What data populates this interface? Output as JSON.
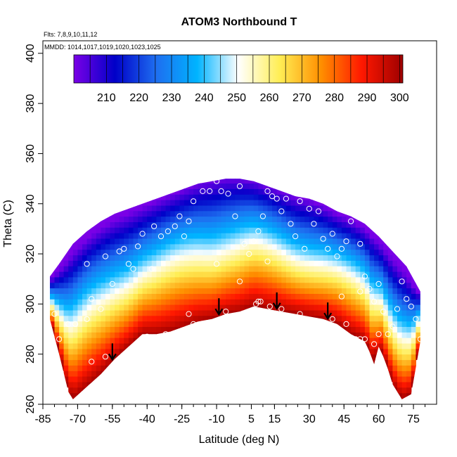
{
  "chart_data": {
    "type": "heatmap",
    "title": "ATOM3 Northbound T",
    "annotations": {
      "flights": "Flts: 7,8,9,10,11,12",
      "mmdd": "MMDD: 1014,1017,1019,1020,1023,1025"
    },
    "xlabel": "Latitude (deg N)",
    "ylabel": "Theta (C)",
    "xlim": [
      -85,
      85
    ],
    "ylim": [
      260,
      405
    ],
    "x_ticks": [
      -85,
      -70,
      -55,
      -40,
      -25,
      -10,
      5,
      15,
      30,
      45,
      60,
      75
    ],
    "x_tick_labels": [
      "-85",
      "-70",
      "-55",
      "-40",
      "-25",
      "-10",
      "5",
      "15",
      "30",
      "45",
      "60",
      "75"
    ],
    "y_ticks": [
      260,
      280,
      300,
      320,
      340,
      360,
      380,
      400
    ],
    "y_tick_labels": [
      "260",
      "280",
      "300",
      "320",
      "340",
      "360",
      "380",
      "400"
    ],
    "colorbar": {
      "min": 200,
      "max": 301,
      "ticks": [
        210,
        220,
        230,
        240,
        250,
        260,
        270,
        280,
        290,
        300
      ],
      "tick_labels": [
        "210",
        "220",
        "230",
        "240",
        "250",
        "260",
        "270",
        "280",
        "290",
        "300"
      ],
      "colors": [
        "#7a00e6",
        "#0000c8",
        "#1e6ef0",
        "#00b4ff",
        "#ffffff",
        "#ffee55",
        "#ff9000",
        "#ff1800",
        "#9e0000"
      ]
    },
    "field": {
      "lat_range": [
        -82,
        78
      ],
      "upper_theta": [
        [
          -82,
          311
        ],
        [
          -78,
          316
        ],
        [
          -72,
          324
        ],
        [
          -66,
          329
        ],
        [
          -60,
          333
        ],
        [
          -54,
          336
        ],
        [
          -48,
          338
        ],
        [
          -42,
          340
        ],
        [
          -36,
          342
        ],
        [
          -30,
          344
        ],
        [
          -24,
          346
        ],
        [
          -18,
          348
        ],
        [
          -12,
          349
        ],
        [
          -6,
          350
        ],
        [
          0,
          350
        ],
        [
          6,
          349
        ],
        [
          12,
          347
        ],
        [
          18,
          345
        ],
        [
          24,
          343
        ],
        [
          30,
          342
        ],
        [
          36,
          340
        ],
        [
          42,
          337
        ],
        [
          48,
          335
        ],
        [
          54,
          332
        ],
        [
          60,
          327
        ],
        [
          66,
          321
        ],
        [
          72,
          315
        ],
        [
          78,
          305
        ]
      ],
      "lower_theta": [
        [
          -82,
          294
        ],
        [
          -78,
          280
        ],
        [
          -74,
          265
        ],
        [
          -72,
          262
        ],
        [
          -66,
          267
        ],
        [
          -60,
          272
        ],
        [
          -54,
          278
        ],
        [
          -48,
          283
        ],
        [
          -42,
          288
        ],
        [
          -36,
          288
        ],
        [
          -30,
          289
        ],
        [
          -24,
          291
        ],
        [
          -18,
          293
        ],
        [
          -12,
          294
        ],
        [
          -6,
          296
        ],
        [
          0,
          297
        ],
        [
          6,
          299
        ],
        [
          12,
          298
        ],
        [
          18,
          297
        ],
        [
          24,
          296
        ],
        [
          30,
          295
        ],
        [
          36,
          294
        ],
        [
          42,
          292
        ],
        [
          48,
          288
        ],
        [
          52,
          286
        ],
        [
          54,
          285
        ],
        [
          56,
          281
        ],
        [
          58,
          276
        ],
        [
          60,
          283
        ],
        [
          62,
          279
        ],
        [
          64,
          274
        ],
        [
          66,
          268
        ],
        [
          70,
          262
        ],
        [
          74,
          264
        ],
        [
          78,
          285
        ]
      ]
    },
    "arrows": [
      -55,
      -9,
      16,
      38
    ],
    "points": [
      [
        -80,
        296
      ],
      [
        -78,
        286
      ],
      [
        -74,
        292
      ],
      [
        -71,
        292
      ],
      [
        -66,
        294
      ],
      [
        -64,
        302
      ],
      [
        -60,
        298
      ],
      [
        -55,
        308
      ],
      [
        -52,
        321
      ],
      [
        -50,
        322
      ],
      [
        -48,
        316
      ],
      [
        -44,
        323
      ],
      [
        -42,
        328
      ],
      [
        -37,
        331
      ],
      [
        -34,
        327
      ],
      [
        -31,
        329
      ],
      [
        -28,
        331
      ],
      [
        -26,
        335
      ],
      [
        -24,
        327
      ],
      [
        -22,
        333
      ],
      [
        -20,
        341
      ],
      [
        -16,
        345
      ],
      [
        -13,
        345
      ],
      [
        -10,
        349
      ],
      [
        -8,
        345
      ],
      [
        -5,
        344
      ],
      [
        -2,
        335
      ],
      [
        0,
        347
      ],
      [
        2,
        324
      ],
      [
        4,
        320
      ],
      [
        6,
        325
      ],
      [
        8,
        329
      ],
      [
        10,
        335
      ],
      [
        12,
        345
      ],
      [
        14,
        343
      ],
      [
        16,
        342
      ],
      [
        18,
        337
      ],
      [
        20,
        342
      ],
      [
        22,
        332
      ],
      [
        24,
        327
      ],
      [
        26,
        341
      ],
      [
        30,
        338
      ],
      [
        32,
        332
      ],
      [
        34,
        337
      ],
      [
        36,
        326
      ],
      [
        38,
        322
      ],
      [
        40,
        328
      ],
      [
        42,
        319
      ],
      [
        44,
        322
      ],
      [
        46,
        325
      ],
      [
        48,
        333
      ],
      [
        50,
        336
      ],
      [
        52,
        324
      ],
      [
        54,
        311
      ],
      [
        56,
        306
      ],
      [
        58,
        301
      ],
      [
        60,
        308
      ],
      [
        62,
        297
      ],
      [
        64,
        288
      ],
      [
        66,
        291
      ],
      [
        68,
        298
      ],
      [
        70,
        309
      ],
      [
        72,
        302
      ],
      [
        74,
        299
      ],
      [
        76,
        294
      ],
      [
        78,
        286
      ],
      [
        -64,
        277
      ],
      [
        -58,
        279
      ],
      [
        -40,
        287
      ],
      [
        -32,
        288
      ],
      [
        -20,
        292
      ],
      [
        -6,
        297
      ],
      [
        7,
        300
      ],
      [
        8,
        301
      ],
      [
        9,
        301
      ],
      [
        13,
        299
      ],
      [
        18,
        298
      ],
      [
        26,
        296
      ],
      [
        34,
        293
      ],
      [
        40,
        294
      ],
      [
        46,
        292
      ],
      [
        50,
        286
      ],
      [
        52,
        286
      ],
      [
        54,
        286
      ],
      [
        58,
        284
      ],
      [
        60,
        288
      ],
      [
        -22,
        296
      ],
      [
        -10,
        316
      ],
      [
        0,
        309
      ],
      [
        12,
        317
      ],
      [
        28,
        322
      ],
      [
        44,
        303
      ],
      [
        52,
        305
      ],
      [
        -66,
        316
      ],
      [
        -58,
        319
      ],
      [
        -46,
        314
      ],
      [
        -38,
        314
      ]
    ]
  }
}
